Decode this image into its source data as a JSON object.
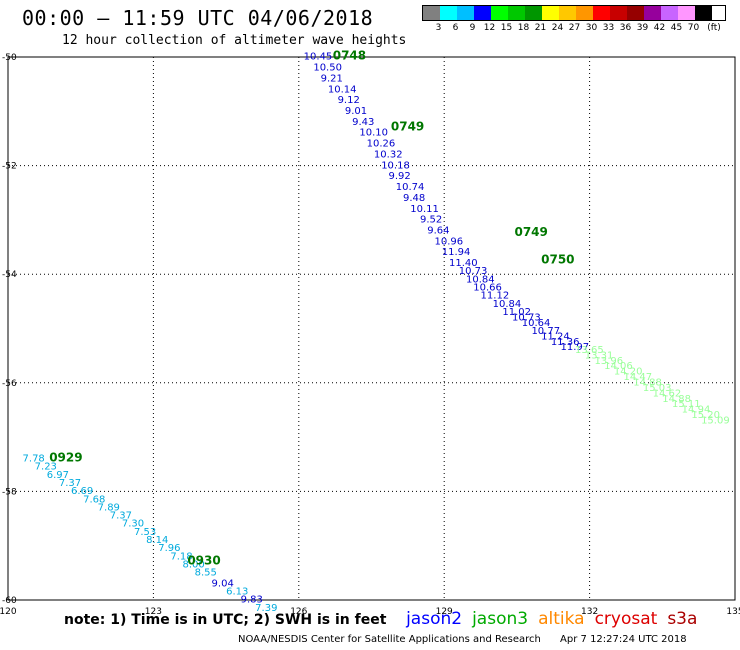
{
  "header": {
    "title": "00:00 – 11:59 UTC 04/06/2018",
    "subtitle": "12 hour collection of altimeter wave heights"
  },
  "legend": {
    "colors": [
      "#808080",
      "#00ffff",
      "#00bfff",
      "#0000ff",
      "#00ff00",
      "#00c800",
      "#009600",
      "#ffff00",
      "#ffc800",
      "#ff9600",
      "#ff0000",
      "#c80000",
      "#960000",
      "#96009c",
      "#c864ff",
      "#ff96ff",
      "#000000"
    ],
    "labels": [
      "3",
      "6",
      "9",
      "12",
      "15",
      "18",
      "21",
      "24",
      "27",
      "30",
      "33",
      "36",
      "39",
      "42",
      "45",
      "70"
    ],
    "unit": "(ft)"
  },
  "chart_data": {
    "type": "scatter",
    "xlim": [
      120,
      135
    ],
    "ylim": [
      -60,
      -50
    ],
    "x_ticks": [
      "120",
      "123",
      "126",
      "129",
      "132",
      "135"
    ],
    "y_ticks": [
      "-50",
      "-52",
      "-54",
      "-56",
      "-58",
      "-60"
    ],
    "grid": true,
    "series": [
      {
        "name": "jason2",
        "color": "#0000cc",
        "points": [
          [
            126.1,
            -50.05,
            "10.45"
          ],
          [
            126.3,
            -50.25,
            "10.50"
          ],
          [
            126.45,
            -50.45,
            "9.21"
          ],
          [
            126.6,
            -50.65,
            "10.14"
          ],
          [
            126.8,
            -50.85,
            "9.12"
          ],
          [
            126.95,
            -51.05,
            "9.01"
          ],
          [
            127.1,
            -51.25,
            "9.43"
          ],
          [
            127.25,
            -51.45,
            "10.10"
          ],
          [
            127.4,
            -51.65,
            "10.26"
          ],
          [
            127.55,
            -51.85,
            "10.32"
          ],
          [
            127.7,
            -52.05,
            "10.18"
          ],
          [
            127.85,
            -52.25,
            "9.92"
          ],
          [
            128.0,
            -52.45,
            "10.74"
          ],
          [
            128.15,
            -52.65,
            "9.48"
          ],
          [
            128.3,
            -52.85,
            "10.11"
          ],
          [
            128.5,
            -53.05,
            "9.52"
          ],
          [
            128.65,
            -53.25,
            "9.64"
          ],
          [
            128.8,
            -53.45,
            "10.96"
          ],
          [
            128.95,
            -53.65,
            "11.94"
          ],
          [
            129.1,
            -53.85,
            "11.40"
          ],
          [
            129.3,
            -54.0,
            "10.73"
          ],
          [
            129.45,
            -54.15,
            "10.84"
          ],
          [
            129.6,
            -54.3,
            "10.66"
          ],
          [
            129.75,
            -54.45,
            "11.12"
          ],
          [
            130.0,
            -54.6,
            "10.84"
          ],
          [
            130.2,
            -54.75,
            "11.02"
          ],
          [
            130.4,
            -54.85,
            "10.73"
          ],
          [
            130.6,
            -54.95,
            "10.64"
          ],
          [
            130.8,
            -55.1,
            "10.77"
          ],
          [
            131.0,
            -55.2,
            "11.24"
          ],
          [
            131.2,
            -55.3,
            "11.36"
          ],
          [
            131.4,
            -55.4,
            "11.97"
          ]
        ]
      },
      {
        "name": "jason3",
        "color": "#99ff99",
        "points": [
          [
            131.7,
            -55.45,
            "13.65"
          ],
          [
            131.9,
            -55.55,
            "13.31"
          ],
          [
            132.1,
            -55.65,
            "13.96"
          ],
          [
            132.3,
            -55.75,
            "14.06"
          ],
          [
            132.5,
            -55.85,
            "14.20"
          ],
          [
            132.7,
            -55.95,
            "14.47"
          ],
          [
            132.9,
            -56.05,
            "14.88"
          ],
          [
            133.1,
            -56.15,
            "15.03"
          ],
          [
            133.3,
            -56.25,
            "14.62"
          ],
          [
            133.5,
            -56.35,
            "14.88"
          ],
          [
            133.7,
            -56.45,
            "15.11"
          ],
          [
            133.9,
            -56.55,
            "14.94"
          ],
          [
            134.1,
            -56.65,
            "15.20"
          ],
          [
            134.3,
            -56.75,
            "15.09"
          ]
        ]
      },
      {
        "name": "altika",
        "color": "#00aadd",
        "points": [
          [
            120.3,
            -57.45,
            "7.78"
          ],
          [
            120.55,
            -57.6,
            "7.23"
          ],
          [
            120.8,
            -57.75,
            "6.97"
          ],
          [
            121.05,
            -57.9,
            "7.37"
          ],
          [
            121.3,
            -58.05,
            "6.69"
          ],
          [
            121.55,
            -58.2,
            "7.68"
          ],
          [
            121.85,
            -58.35,
            "7.89"
          ],
          [
            122.1,
            -58.5,
            "7.37"
          ],
          [
            122.35,
            -58.65,
            "7.30"
          ],
          [
            122.6,
            -58.8,
            "7.53"
          ],
          [
            122.85,
            -58.95,
            "8.14"
          ],
          [
            123.1,
            -59.1,
            "7.96"
          ],
          [
            123.35,
            -59.25,
            "7.18"
          ],
          [
            123.6,
            -59.4,
            "8.00"
          ],
          [
            123.85,
            -59.55,
            "8.55"
          ]
        ]
      },
      {
        "name": "cryosat",
        "color": "#0000cc",
        "points": [
          [
            124.2,
            -59.75,
            "9.04"
          ],
          [
            124.8,
            -60.05,
            "9.83"
          ]
        ]
      },
      {
        "name": "s3a",
        "color": "#00aadd",
        "points": [
          [
            124.5,
            -59.9,
            "6.13"
          ],
          [
            125.1,
            -60.2,
            "7.39"
          ]
        ]
      }
    ],
    "time_labels": [
      {
        "x": 126.7,
        "y": -50.05,
        "text": "0748"
      },
      {
        "x": 127.9,
        "y": -51.35,
        "text": "0749"
      },
      {
        "x": 130.45,
        "y": -53.3,
        "text": "0749"
      },
      {
        "x": 131.0,
        "y": -53.8,
        "text": "0750"
      },
      {
        "x": 120.85,
        "y": -57.45,
        "text": "0929"
      },
      {
        "x": 123.7,
        "y": -59.35,
        "text": "0930"
      }
    ]
  },
  "note": "note: 1) Time is in UTC; 2) SWH is in feet",
  "satellites": [
    {
      "label": "jason2",
      "color": "#0000ff"
    },
    {
      "label": "jason3",
      "color": "#00aa00"
    },
    {
      "label": "altika",
      "color": "#ff8800"
    },
    {
      "label": "cryosat",
      "color": "#dd0000"
    },
    {
      "label": "s3a",
      "color": "#aa0000"
    }
  ],
  "footer": {
    "credit": "NOAA/NESDIS Center for Satellite Applications and Research",
    "timestamp": "Apr  7 12:27:24 UTC 2018"
  }
}
